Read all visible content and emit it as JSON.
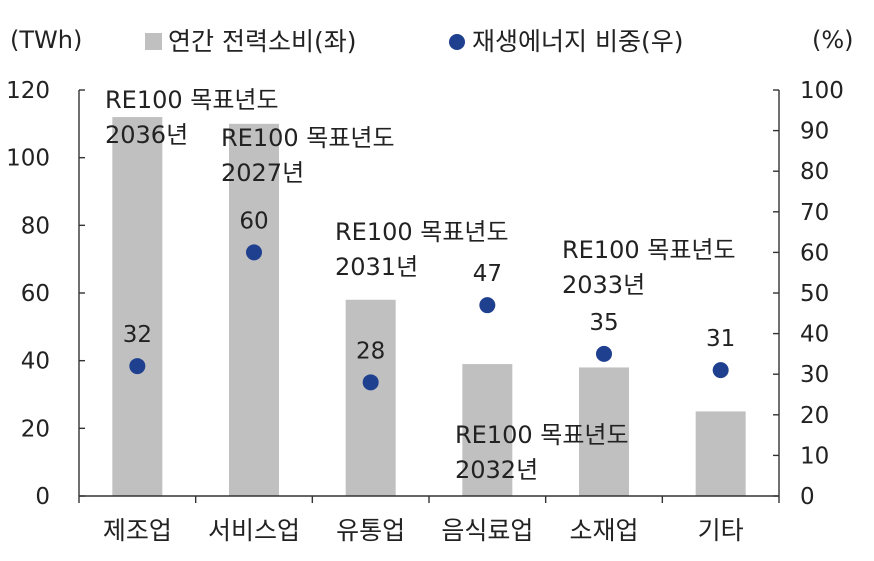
{
  "chart_data": {
    "type": "bar",
    "categories": [
      "제조업",
      "서비스업",
      "유통업",
      "음식료업",
      "소재업",
      "기타"
    ],
    "series": [
      {
        "name": "연간 전력소비(좌)",
        "type": "bar",
        "axis": "left",
        "values": [
          112,
          110,
          58,
          39,
          38,
          25
        ],
        "color": "#c0c0c0"
      },
      {
        "name": "재생에너지 비중(우)",
        "type": "scatter",
        "axis": "right",
        "values": [
          32,
          60,
          28,
          47,
          35,
          31
        ],
        "labels": [
          "32",
          "60",
          "28",
          "47",
          "35",
          "31"
        ],
        "color": "#1f3f8f"
      }
    ],
    "y_left": {
      "unit": "(TWh)",
      "ylim": [
        0,
        120
      ],
      "ticks": [
        "0",
        "20",
        "40",
        "60",
        "80",
        "100",
        "120"
      ]
    },
    "y_right": {
      "unit": "(%)",
      "ylim": [
        0,
        100
      ],
      "ticks": [
        "0",
        "10",
        "20",
        "30",
        "40",
        "50",
        "60",
        "70",
        "80",
        "90",
        "100"
      ]
    },
    "annotations": [
      {
        "line1": "RE100 목표년도",
        "line2": "2036년"
      },
      {
        "line1": "RE100 목표년도",
        "line2": "2027년"
      },
      {
        "line1": "RE100 목표년도",
        "line2": "2031년"
      },
      {
        "line1": "RE100 목표년도",
        "line2": "2032년"
      },
      {
        "line1": "RE100 목표년도",
        "line2": "2033년"
      }
    ],
    "legend_position": "top",
    "grid": false
  }
}
